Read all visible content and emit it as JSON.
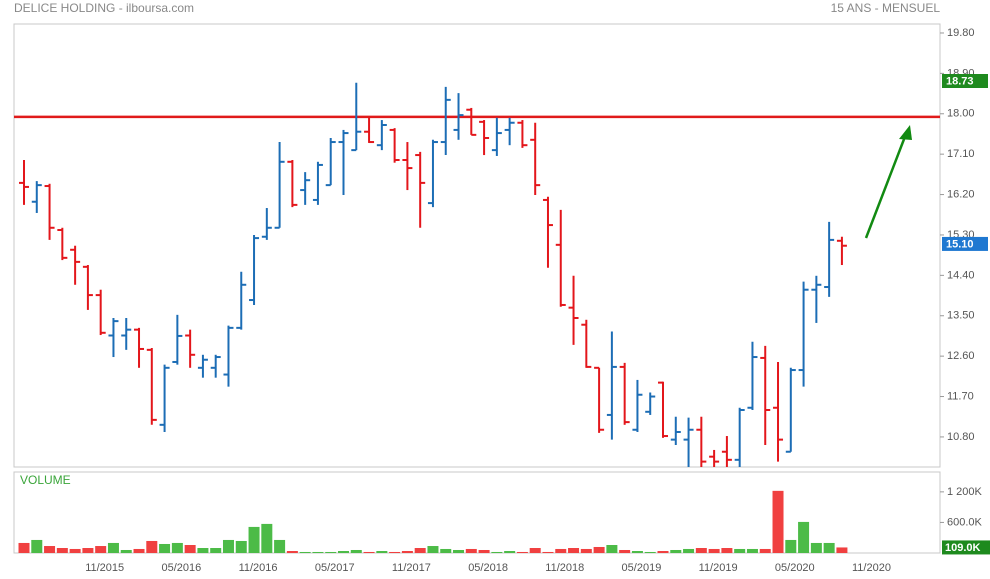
{
  "chart_data": {
    "type": "ohlc",
    "title": "DELICE HOLDING - ilboursa.com",
    "subtitle": "15 ANS - MENSUEL",
    "categories": [
      null,
      null,
      null,
      null,
      null,
      null,
      "11/2015",
      null,
      null,
      null,
      null,
      null,
      "05/2016",
      null,
      null,
      null,
      null,
      null,
      "11/2016",
      null,
      null,
      null,
      null,
      null,
      "05/2017",
      null,
      null,
      null,
      null,
      null,
      "11/2017",
      null,
      null,
      null,
      null,
      null,
      "05/2018",
      null,
      null,
      null,
      null,
      null,
      "11/2018",
      null,
      null,
      null,
      null,
      null,
      "05/2019",
      null,
      null,
      null,
      null,
      null,
      "11/2019",
      null,
      null,
      null,
      null,
      null,
      "05/2020",
      null,
      null,
      null,
      null,
      null,
      "11/2020"
    ],
    "open": [
      16.46,
      16.04,
      16.39,
      15.41,
      14.97,
      14.59,
      13.96,
      13.06,
      13.06,
      13.19,
      12.74,
      11.07,
      12.47,
      13.06,
      12.34,
      12.34,
      12.19,
      13.23,
      13.85,
      15.26,
      15.46,
      16.93,
      16.3,
      16.08,
      16.41,
      17.37,
      17.19,
      17.6,
      17.3,
      17.64,
      16.97,
      17.08,
      16.01,
      17.37,
      17.64,
      18.09,
      17.82,
      17.19,
      17.64,
      17.8,
      17.42,
      16.08,
      15.08,
      13.68,
      13.3,
      12.34,
      11.29,
      12.36,
      10.96,
      11.36,
      12.01,
      10.74,
      10.74,
      10.96,
      10.36,
      10.47,
      10.29,
      11.45,
      12.56,
      11.45,
      10.47,
      12.29,
      14.08,
      14.14,
      15.17,
      null,
      null
    ],
    "high": [
      16.97,
      16.5,
      16.44,
      15.46,
      15.06,
      14.63,
      14.08,
      13.45,
      13.45,
      13.23,
      12.78,
      12.41,
      13.52,
      13.19,
      12.63,
      12.63,
      13.28,
      14.48,
      15.3,
      15.9,
      17.37,
      16.97,
      16.7,
      16.93,
      17.46,
      17.64,
      18.69,
      17.91,
      17.86,
      17.68,
      17.37,
      17.15,
      17.42,
      18.6,
      18.46,
      18.13,
      17.86,
      17.91,
      17.91,
      17.86,
      17.8,
      16.15,
      15.86,
      14.39,
      13.41,
      12.34,
      13.15,
      12.45,
      12.07,
      11.79,
      12.03,
      11.25,
      11.23,
      11.25,
      10.51,
      10.82,
      11.45,
      12.92,
      12.83,
      12.47,
      12.34,
      14.26,
      14.39,
      15.59,
      15.26,
      null,
      null
    ],
    "low": [
      15.97,
      15.79,
      15.19,
      14.74,
      14.19,
      13.63,
      13.07,
      12.58,
      12.74,
      12.34,
      11.07,
      10.91,
      12.41,
      12.34,
      12.12,
      12.12,
      11.92,
      13.19,
      13.74,
      15.19,
      15.46,
      15.92,
      15.97,
      15.97,
      16.41,
      16.19,
      17.19,
      17.35,
      17.19,
      16.91,
      16.3,
      15.46,
      15.92,
      17.08,
      17.42,
      17.53,
      17.08,
      17.06,
      17.3,
      17.24,
      16.19,
      14.57,
      13.7,
      12.85,
      12.34,
      10.89,
      10.74,
      11.07,
      10.91,
      11.29,
      10.78,
      10.62,
      10.13,
      10.13,
      10.13,
      10.13,
      10.13,
      11.4,
      10.62,
      10.25,
      10.47,
      11.92,
      13.34,
      13.92,
      14.63,
      null,
      null
    ],
    "close": [
      16.37,
      16.41,
      15.46,
      14.79,
      14.7,
      13.96,
      13.12,
      13.38,
      13.19,
      12.76,
      11.18,
      12.34,
      13.05,
      12.63,
      12.52,
      12.58,
      13.23,
      14.19,
      15.23,
      15.46,
      16.93,
      15.97,
      16.52,
      16.86,
      17.37,
      17.57,
      17.6,
      17.37,
      17.75,
      16.97,
      16.79,
      16.46,
      17.37,
      18.31,
      17.97,
      17.53,
      17.46,
      17.57,
      17.8,
      17.3,
      16.41,
      15.52,
      13.74,
      13.45,
      12.36,
      10.96,
      12.36,
      11.13,
      11.74,
      11.7,
      10.82,
      10.91,
      10.96,
      10.25,
      10.25,
      10.29,
      11.4,
      12.58,
      11.4,
      10.74,
      12.29,
      14.08,
      14.19,
      15.19,
      15.06,
      null,
      null
    ],
    "up_color": "#1c6db5",
    "down_color": "#e3161b",
    "ylim": [
      10.13,
      20.0
    ],
    "yticks": [
      {
        "value": 19.8,
        "label": "19.80"
      },
      {
        "value": 18.9,
        "label": "18.90"
      },
      {
        "value": 18.0,
        "label": "18.00"
      },
      {
        "value": 17.1,
        "label": "17.10"
      },
      {
        "value": 16.2,
        "label": "16.20"
      },
      {
        "value": 15.3,
        "label": "15.30"
      },
      {
        "value": 14.4,
        "label": "14.40"
      },
      {
        "value": 13.5,
        "label": "13.50"
      },
      {
        "value": 12.6,
        "label": "12.60"
      },
      {
        "value": 11.7,
        "label": "11.70"
      },
      {
        "value": 10.8,
        "label": "10.80"
      }
    ],
    "price_tags": [
      {
        "value": 18.73,
        "color": "#1e8a1e"
      },
      {
        "value": 15.1,
        "label": "15.10",
        "color": "#1f78d1"
      }
    ],
    "hline": {
      "value": 17.93,
      "color": "#e01a1a"
    },
    "volume": {
      "label": "VOLUME",
      "values": [
        197000,
        256000,
        137000,
        98000,
        79000,
        98000,
        137000,
        197000,
        59000,
        79000,
        236000,
        177000,
        197000,
        157000,
        98000,
        98000,
        256000,
        236000,
        512000,
        571000,
        256000,
        39000,
        20000,
        20000,
        20000,
        39000,
        59000,
        20000,
        39000,
        20000,
        39000,
        98000,
        137000,
        79000,
        59000,
        79000,
        59000,
        20000,
        39000,
        20000,
        98000,
        20000,
        79000,
        98000,
        79000,
        118000,
        157000,
        59000,
        39000,
        20000,
        39000,
        59000,
        79000,
        98000,
        79000,
        98000,
        79000,
        79000,
        79000,
        1220000,
        256000,
        610000,
        197000,
        197000,
        109000,
        null,
        null
      ],
      "up_color": "#4cbb47",
      "down_color": "#f04040",
      "ylim": [
        0,
        1590000
      ],
      "yticks": [
        {
          "value": 1200000,
          "label": "1 200K"
        },
        {
          "value": 600000,
          "label": "600.0K"
        }
      ],
      "tag": {
        "value": 109000,
        "label": "109.0K",
        "color": "#1e8a1e"
      }
    }
  }
}
